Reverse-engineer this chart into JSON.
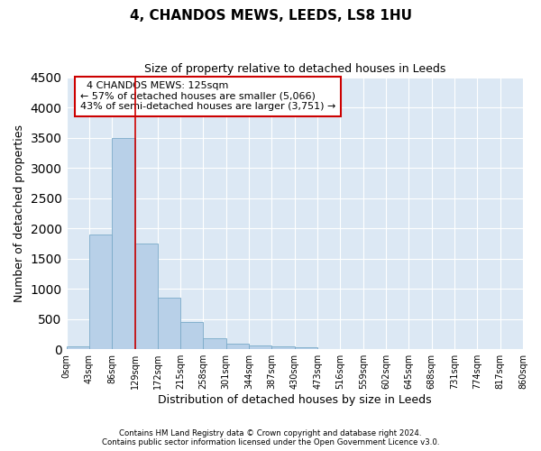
{
  "title": "4, CHANDOS MEWS, LEEDS, LS8 1HU",
  "subtitle": "Size of property relative to detached houses in Leeds",
  "xlabel": "Distribution of detached houses by size in Leeds",
  "ylabel": "Number of detached properties",
  "footnote1": "Contains HM Land Registry data © Crown copyright and database right 2024.",
  "footnote2": "Contains public sector information licensed under the Open Government Licence v3.0.",
  "annotation_title": "4 CHANDOS MEWS: 125sqm",
  "annotation_line1": "← 57% of detached houses are smaller (5,066)",
  "annotation_line2": "43% of semi-detached houses are larger (3,751) →",
  "property_line_x": 129,
  "bin_edges": [
    0,
    43,
    86,
    129,
    172,
    215,
    258,
    301,
    344,
    387,
    430,
    473,
    516,
    559,
    602,
    645,
    688,
    731,
    774,
    817,
    860
  ],
  "bar_values": [
    50,
    1900,
    3500,
    1750,
    850,
    450,
    175,
    100,
    60,
    50,
    30,
    5,
    0,
    0,
    0,
    0,
    0,
    0,
    0,
    0
  ],
  "bar_color": "#b8d0e8",
  "bar_edge_color": "#7aaac8",
  "vline_color": "#cc0000",
  "annotation_box_color": "#cc0000",
  "background_color": "#dce8f4",
  "ylim": [
    0,
    4500
  ],
  "yticks": [
    0,
    500,
    1000,
    1500,
    2000,
    2500,
    3000,
    3500,
    4000,
    4500
  ]
}
